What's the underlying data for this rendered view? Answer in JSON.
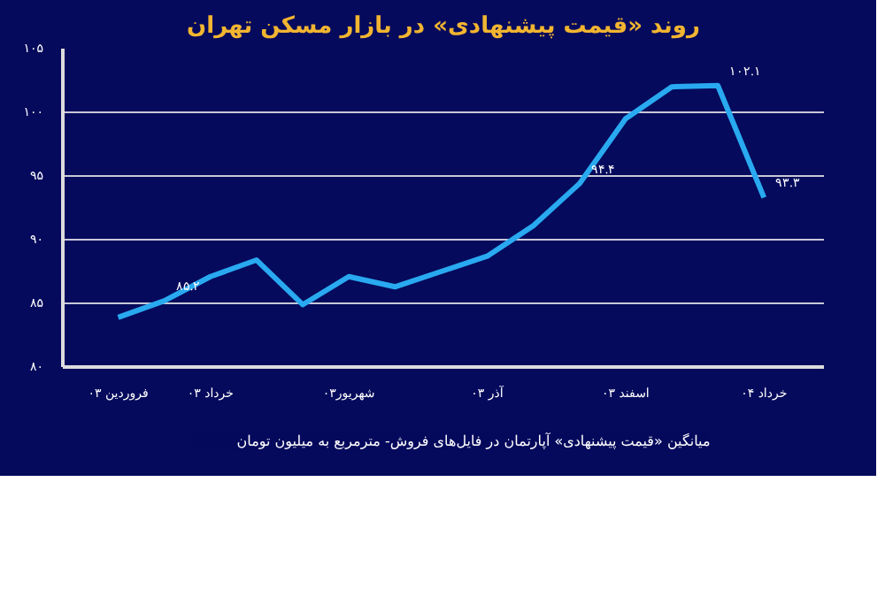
{
  "chart_data": {
    "type": "line",
    "title": "روند «قیمت پیشنهادی» در بازار مسکن تهران",
    "categories": [
      "فروردین ۰۳",
      null,
      "خرداد ۰۳",
      null,
      null,
      "شهریور۰۳",
      null,
      null,
      "آذر ۰۳",
      null,
      null,
      "اسفند ۰۳",
      null,
      null,
      "خرداد ۰۴"
    ],
    "series": [
      {
        "name": "میانگین «قیمت پیشنهادی» آپارتمان در فایل‌های فروش- مترمربع به میلیون تومان",
        "color": "#29a9f0",
        "values": [
          83.9,
          85.2,
          87.1,
          88.4,
          84.9,
          87.1,
          86.3,
          87.5,
          88.7,
          91.1,
          94.4,
          99.5,
          102.0,
          102.1,
          93.3
        ],
        "value_labels": [
          null,
          "۸۵.۲",
          null,
          null,
          null,
          null,
          null,
          null,
          null,
          null,
          "۹۴.۴",
          null,
          null,
          "۱۰۲.۱",
          "۹۳.۳"
        ]
      }
    ],
    "ylim": [
      80,
      105
    ],
    "yticks": [
      {
        "value": 80,
        "label": "۸۰"
      },
      {
        "value": 85,
        "label": "۸۵"
      },
      {
        "value": 90,
        "label": "۹۰"
      },
      {
        "value": 95,
        "label": "۹۵"
      },
      {
        "value": 100,
        "label": "۱۰۰"
      },
      {
        "value": 105,
        "label": "۱۰۵"
      }
    ],
    "grid": "y",
    "legend": "bottom",
    "marker": "none",
    "line_style": "solid"
  }
}
